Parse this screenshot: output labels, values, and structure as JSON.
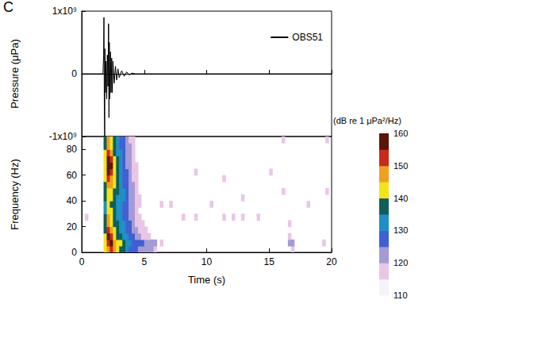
{
  "panel_label": "C",
  "chart_data": [
    {
      "type": "line",
      "ylabel": "Pressure (μPa)",
      "x": [
        0,
        1.7,
        1.75,
        1.78,
        1.81,
        1.84,
        1.87,
        1.9,
        1.95,
        2.0,
        2.05,
        2.1,
        2.15,
        2.18,
        2.21,
        2.25,
        2.3,
        2.35,
        2.4,
        2.45,
        2.5,
        2.6,
        2.7,
        2.8,
        2.9,
        3.0,
        3.2,
        3.4,
        3.6,
        3.8,
        4.0,
        4.3,
        20
      ],
      "series": [
        {
          "name": "OBS51",
          "color": "#000000",
          "values": [
            0,
            0,
            300000000,
            900000000,
            -600000000,
            -1000000000,
            400000000,
            -300000000,
            200000000,
            -400000000,
            300000000,
            -200000000,
            800000000,
            -700000000,
            500000000,
            -400000000,
            350000000,
            -300000000,
            250000000,
            -300000000,
            200000000,
            -150000000,
            120000000,
            -100000000,
            80000000,
            -60000000,
            50000000,
            -40000000,
            30000000,
            -20000000,
            10000000,
            0,
            0
          ]
        }
      ],
      "xlim": [
        0,
        20
      ],
      "xticks": [
        0,
        5,
        10,
        15,
        20
      ],
      "ylim": [
        -1000000000,
        1000000000
      ],
      "yticks": [
        {
          "value": -1000000000,
          "label": "-1x10⁹"
        },
        0,
        {
          "value": 1000000000,
          "label": "1x10⁹"
        }
      ],
      "legend": "top-right",
      "tick_labels": "y"
    },
    {
      "type": "heatmap",
      "xlabel": "Time (s)",
      "ylabel": "Frequency (Hz)",
      "xlim": [
        0,
        20
      ],
      "xticks": [
        0,
        5,
        10,
        15,
        20
      ],
      "ylim": [
        0,
        90
      ],
      "yticks": [
        0,
        20,
        40,
        60,
        80
      ],
      "cell_seconds": 0.25,
      "frequencies": [
        2.5,
        7.5,
        12.5,
        17.5,
        22.5,
        27.5,
        32.5,
        37.5,
        42.5,
        47.5,
        52.5,
        57.5,
        62.5,
        67.5,
        72.5,
        77.5,
        82.5,
        87.5
      ],
      "columns": [
        {
          "time": 0.375,
          "levels": [
            null,
            null,
            null,
            null,
            null,
            116,
            null,
            null,
            null,
            null,
            null,
            null,
            null,
            null,
            null,
            null,
            null,
            null
          ]
        },
        {
          "time": 1.875,
          "levels": [
            140,
            142,
            140,
            138,
            136,
            135,
            134,
            134,
            135,
            136,
            138,
            140,
            142,
            143,
            142,
            140,
            138,
            136
          ]
        },
        {
          "time": 2.125,
          "levels": [
            148,
            152,
            155,
            150,
            146,
            145,
            142,
            140,
            141,
            144,
            146,
            150,
            155,
            158,
            156,
            152,
            147,
            145
          ]
        },
        {
          "time": 2.375,
          "levels": [
            150,
            155,
            152,
            147,
            142,
            141,
            140,
            139,
            140,
            142,
            145,
            147,
            152,
            155,
            152,
            148,
            143,
            141
          ]
        },
        {
          "time": 2.625,
          "levels": [
            147,
            149,
            144,
            141,
            138,
            137,
            136,
            136,
            137,
            139,
            140,
            141,
            142,
            142,
            141,
            139,
            137,
            136
          ]
        },
        {
          "time": 2.875,
          "levels": [
            142,
            144,
            139,
            137,
            135,
            134,
            133,
            133,
            134,
            135,
            136,
            137,
            137,
            136,
            135,
            134,
            133,
            132
          ]
        },
        {
          "time": 3.125,
          "levels": [
            138,
            140,
            135,
            134,
            132,
            131,
            130,
            131,
            132,
            133,
            133,
            132,
            132,
            131,
            130,
            130,
            129,
            128
          ]
        },
        {
          "time": 3.375,
          "levels": [
            135,
            137,
            132,
            131,
            130,
            129,
            128,
            129,
            130,
            130,
            129,
            128,
            128,
            127,
            127,
            126,
            126,
            125
          ]
        },
        {
          "time": 3.625,
          "levels": [
            132,
            134,
            130,
            129,
            127,
            127,
            126,
            126,
            127,
            127,
            126,
            125,
            125,
            124,
            124,
            123,
            123,
            122
          ]
        },
        {
          "time": 3.875,
          "levels": [
            129,
            131,
            128,
            126,
            125,
            124,
            123,
            123,
            124,
            124,
            123,
            122,
            122,
            121,
            121,
            120,
            120,
            119
          ]
        },
        {
          "time": 4.125,
          "levels": [
            127,
            129,
            126,
            124,
            122,
            121,
            120,
            120,
            121,
            121,
            120,
            119,
            119,
            118,
            118,
            117,
            117,
            116
          ]
        },
        {
          "time": 4.375,
          "levels": [
            125,
            127,
            123,
            121,
            119,
            118,
            117,
            117,
            118,
            118,
            117,
            116,
            116,
            115,
            null,
            null,
            null,
            null
          ]
        },
        {
          "time": 4.625,
          "levels": [
            124,
            126,
            121,
            119,
            117,
            116,
            null,
            115,
            116,
            null,
            null,
            null,
            null,
            null,
            null,
            null,
            null,
            null
          ]
        },
        {
          "time": 4.875,
          "levels": [
            123,
            125,
            119,
            117,
            115,
            null,
            null,
            null,
            null,
            null,
            null,
            null,
            null,
            null,
            null,
            null,
            null,
            null
          ]
        },
        {
          "time": 5.125,
          "levels": [
            122,
            124,
            117,
            115,
            null,
            null,
            null,
            null,
            null,
            null,
            null,
            null,
            null,
            null,
            null,
            null,
            null,
            null
          ]
        },
        {
          "time": 5.375,
          "levels": [
            121,
            123,
            116,
            null,
            null,
            null,
            null,
            null,
            null,
            null,
            null,
            null,
            null,
            null,
            null,
            null,
            null,
            null
          ]
        },
        {
          "time": 5.625,
          "levels": [
            120,
            122,
            null,
            null,
            null,
            null,
            null,
            null,
            null,
            null,
            null,
            null,
            null,
            null,
            null,
            null,
            null,
            null
          ]
        },
        {
          "time": 5.875,
          "levels": [
            118,
            121,
            null,
            null,
            null,
            null,
            null,
            null,
            null,
            null,
            null,
            null,
            null,
            null,
            null,
            null,
            null,
            null
          ]
        },
        {
          "time": 6.375,
          "levels": [
            null,
            116,
            null,
            null,
            null,
            null,
            null,
            115,
            null,
            null,
            null,
            null,
            null,
            null,
            null,
            null,
            null,
            null
          ]
        },
        {
          "time": 7.125,
          "levels": [
            null,
            null,
            null,
            null,
            null,
            null,
            null,
            116,
            null,
            null,
            null,
            null,
            null,
            null,
            null,
            null,
            null,
            null
          ]
        },
        {
          "time": 8.125,
          "levels": [
            null,
            null,
            null,
            null,
            null,
            115,
            null,
            null,
            null,
            null,
            null,
            null,
            null,
            null,
            null,
            null,
            null,
            null
          ]
        },
        {
          "time": 9.125,
          "levels": [
            null,
            null,
            null,
            null,
            null,
            116,
            null,
            null,
            null,
            null,
            null,
            null,
            115,
            null,
            null,
            null,
            null,
            null
          ]
        },
        {
          "time": 10.375,
          "levels": [
            null,
            null,
            null,
            null,
            null,
            null,
            null,
            116,
            null,
            null,
            null,
            null,
            null,
            null,
            null,
            null,
            null,
            null
          ]
        },
        {
          "time": 11.375,
          "levels": [
            null,
            null,
            null,
            null,
            null,
            115,
            null,
            null,
            null,
            null,
            null,
            115,
            null,
            null,
            null,
            null,
            null,
            null
          ]
        },
        {
          "time": 12.125,
          "levels": [
            null,
            null,
            null,
            null,
            null,
            117,
            null,
            null,
            null,
            null,
            null,
            null,
            null,
            null,
            null,
            null,
            null,
            null
          ]
        },
        {
          "time": 12.875,
          "levels": [
            null,
            null,
            null,
            null,
            null,
            117,
            null,
            null,
            115,
            null,
            null,
            null,
            null,
            null,
            null,
            null,
            null,
            null
          ]
        },
        {
          "time": 14.125,
          "levels": [
            null,
            null,
            null,
            null,
            null,
            115,
            null,
            null,
            null,
            null,
            null,
            null,
            null,
            null,
            null,
            null,
            null,
            null
          ]
        },
        {
          "time": 15.125,
          "levels": [
            null,
            null,
            null,
            null,
            null,
            null,
            null,
            null,
            null,
            null,
            null,
            null,
            115,
            null,
            null,
            null,
            null,
            null
          ]
        },
        {
          "time": 16.125,
          "levels": [
            null,
            null,
            null,
            null,
            null,
            null,
            null,
            null,
            null,
            115,
            null,
            null,
            null,
            null,
            null,
            null,
            null,
            117
          ]
        },
        {
          "time": 16.625,
          "levels": [
            null,
            120,
            118,
            null,
            116,
            null,
            null,
            null,
            null,
            null,
            null,
            null,
            null,
            null,
            null,
            null,
            null,
            null
          ]
        },
        {
          "time": 16.875,
          "levels": [
            118,
            124,
            null,
            null,
            null,
            null,
            null,
            null,
            null,
            null,
            null,
            null,
            null,
            null,
            null,
            null,
            null,
            null
          ]
        },
        {
          "time": 18.125,
          "levels": [
            null,
            null,
            null,
            null,
            null,
            null,
            null,
            116,
            null,
            null,
            null,
            null,
            null,
            null,
            null,
            null,
            null,
            null
          ]
        },
        {
          "time": 19.375,
          "levels": [
            null,
            116,
            null,
            null,
            null,
            null,
            null,
            null,
            null,
            null,
            null,
            null,
            null,
            null,
            null,
            null,
            null,
            null
          ]
        },
        {
          "time": 19.625,
          "levels": [
            null,
            null,
            null,
            null,
            null,
            null,
            null,
            null,
            null,
            116,
            null,
            null,
            null,
            null,
            null,
            null,
            null,
            116
          ]
        }
      ],
      "colorbar": {
        "title": "(dB re 1 μPa²/Hz)",
        "range": [
          110,
          160
        ],
        "ticks": [
          110,
          120,
          130,
          140,
          150,
          160
        ],
        "colors": [
          "#f6f2fa",
          "#e9c6e6",
          "#a49ad6",
          "#3f5fd2",
          "#1c8fc6",
          "#0f5f58",
          "#f3e41a",
          "#f0a020",
          "#c82a1c",
          "#5a1606"
        ]
      }
    }
  ]
}
